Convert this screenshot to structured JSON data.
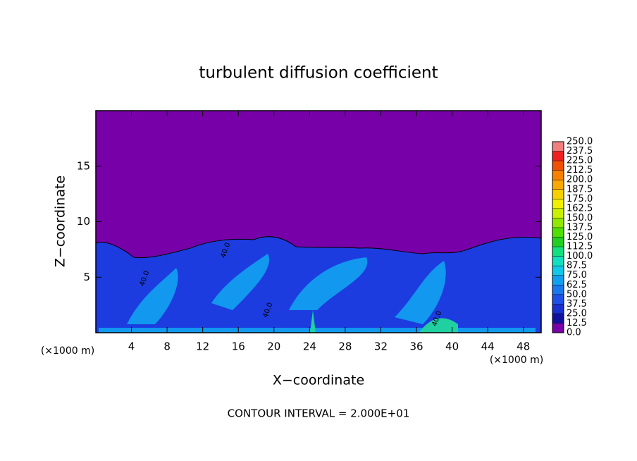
{
  "chart_data": {
    "type": "contour",
    "title": "turbulent diffusion coefficient",
    "x_label": "X−coordinate",
    "y_label": "Z−coordinate",
    "x_unit_labels": [
      "(×1000 m)",
      "(×1000 m)"
    ],
    "footer": "CONTOUR INTERVAL = 2.000E+01",
    "xlim": [
      0,
      50
    ],
    "xticks": [
      4,
      8,
      12,
      16,
      20,
      24,
      28,
      32,
      36,
      40,
      44,
      48
    ],
    "ylim": [
      0,
      20
    ],
    "yticks": [
      5,
      10,
      15
    ],
    "contour_labels": [
      "40.0",
      "40.0",
      "40.0",
      "40.0"
    ],
    "levels": [
      {
        "value": 0,
        "label": "0.0"
      },
      {
        "value": 12.5,
        "label": "12.5"
      },
      {
        "value": 25,
        "label": "25.0"
      },
      {
        "value": 37.5,
        "label": "37.5"
      },
      {
        "value": 50,
        "label": "50.0"
      },
      {
        "value": 62.5,
        "label": "62.5"
      },
      {
        "value": 75,
        "label": "75.0"
      },
      {
        "value": 87.5,
        "label": "87.5"
      },
      {
        "value": 100,
        "label": "100.0"
      },
      {
        "value": 112.5,
        "label": "112.5"
      },
      {
        "value": 125,
        "label": "125.0"
      },
      {
        "value": 137.5,
        "label": "137.5"
      },
      {
        "value": 150,
        "label": "150.0"
      },
      {
        "value": 162.5,
        "label": "162.5"
      },
      {
        "value": 175,
        "label": "175.0"
      },
      {
        "value": 187.5,
        "label": "187.5"
      },
      {
        "value": 200,
        "label": "200.0"
      },
      {
        "value": 212.5,
        "label": "212.5"
      },
      {
        "value": 225,
        "label": "225.0"
      },
      {
        "value": 237.5,
        "label": "237.5"
      },
      {
        "value": 250,
        "label": "250.0"
      }
    ],
    "colors": [
      "#7800a8",
      "#1010a0",
      "#1830d0",
      "#1c50e8",
      "#1878f0",
      "#10a0f0",
      "#10c8e8",
      "#10e0c0",
      "#10e080",
      "#20d020",
      "#50e000",
      "#90e800",
      "#c8f000",
      "#f0f000",
      "#f8d000",
      "#f8a800",
      "#f88000",
      "#f05000",
      "#f02020",
      "#f08080"
    ]
  }
}
